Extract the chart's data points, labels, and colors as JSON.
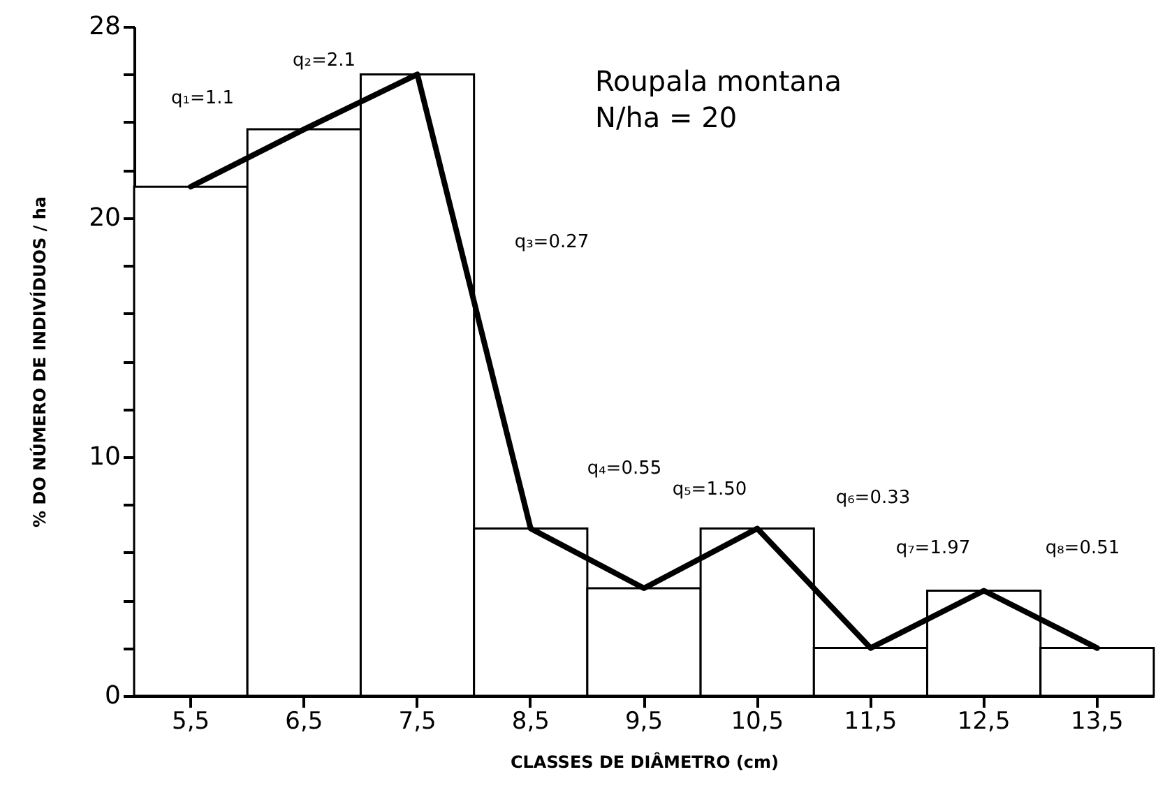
{
  "chart_data": {
    "type": "bar",
    "title": "Roupala montana",
    "subtitle": "N/ha = 20",
    "xlabel": "CLASSES DE DIÂMETRO (cm)",
    "ylabel": "% DO NÚMERO DE INDIVÍDUOS / ha",
    "categories": [
      "5,5",
      "6,5",
      "7,5",
      "8,5",
      "9,5",
      "10,5",
      "11,5",
      "12,5",
      "13,5"
    ],
    "series": [
      {
        "color": "#ffffff",
        "values": [
          21.3,
          23.7,
          26,
          7,
          4.5,
          7,
          2,
          4.4,
          2
        ]
      },
      {
        "type": "line",
        "color": "#000000",
        "values": [
          21.3,
          23.7,
          26,
          7,
          4.5,
          7,
          2,
          4.4,
          2
        ]
      }
    ],
    "ylim": [
      0,
      28
    ],
    "yticks": [
      0,
      {
        "value": 2,
        "label": null
      },
      {
        "value": 4,
        "label": null
      },
      {
        "value": 6,
        "label": null
      },
      {
        "value": 8,
        "label": null
      },
      10,
      {
        "value": 12,
        "label": null
      },
      {
        "value": 14,
        "label": null
      },
      {
        "value": 16,
        "label": null
      },
      {
        "value": 18,
        "label": null
      },
      20,
      {
        "value": 22,
        "label": null
      },
      {
        "value": 24,
        "label": null
      },
      {
        "value": 26,
        "label": null
      },
      28
    ],
    "grid": false,
    "annotations": [
      "q₁=1.1",
      "q₂=2.1",
      "q₃=0.27",
      "q₄=0.55",
      "q₅=1.50",
      "q₆=0.33",
      "q₇=1.97",
      "q₈=0.51"
    ]
  }
}
